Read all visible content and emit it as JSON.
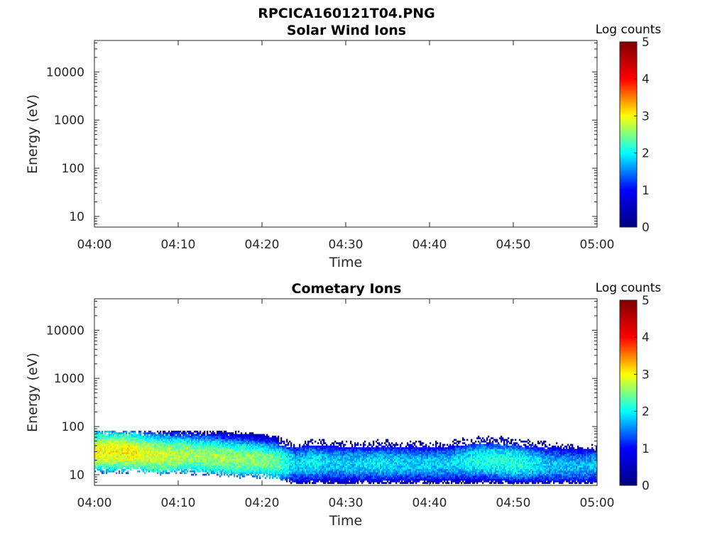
{
  "figure": {
    "title": "RPCICA160121T04.PNG"
  },
  "colormap_stops": [
    "#00007f",
    "#0000ff",
    "#00ffff",
    "#ffff00",
    "#ff0000",
    "#7f0000"
  ],
  "chart_data": [
    {
      "type": "heatmap",
      "title": "Solar Wind Ions",
      "xlabel": "Time",
      "ylabel": "Energy (eV)",
      "x_tick_labels": [
        "04:00",
        "04:10",
        "04:20",
        "04:30",
        "04:40",
        "04:50",
        "05:00"
      ],
      "x_range_minutes": [
        0,
        60
      ],
      "y_scale": "log",
      "y_range": [
        6,
        45000
      ],
      "y_tick_values": [
        10,
        100,
        1000,
        10000
      ],
      "y_tick_labels": [
        "10",
        "100",
        "1000",
        "10000"
      ],
      "colorbar": {
        "label": "Log counts",
        "range": [
          0,
          5
        ],
        "tick_labels": [
          "0",
          "1",
          "2",
          "3",
          "4",
          "5"
        ]
      },
      "data_description_values": [],
      "grid": false
    },
    {
      "type": "heatmap",
      "title": "Cometary Ions",
      "xlabel": "Time",
      "ylabel": "Energy (eV)",
      "x_tick_labels": [
        "04:00",
        "04:10",
        "04:20",
        "04:30",
        "04:40",
        "04:50",
        "05:00"
      ],
      "x_range_minutes": [
        0,
        60
      ],
      "y_scale": "log",
      "y_range": [
        6,
        45000
      ],
      "y_tick_values": [
        10,
        100,
        1000,
        10000
      ],
      "y_tick_labels": [
        "10",
        "100",
        "1000",
        "10000"
      ],
      "colorbar": {
        "label": "Log counts",
        "range": [
          0,
          5
        ],
        "tick_labels": [
          "0",
          "1",
          "2",
          "3",
          "4",
          "5"
        ]
      },
      "grid": false,
      "band_profile": {
        "x_minutes": [
          0,
          4,
          8,
          12,
          16,
          20,
          22,
          24,
          26,
          28,
          30,
          34,
          38,
          42,
          46,
          50,
          54,
          58,
          60
        ],
        "upper_energy_eV": [
          80,
          80,
          80,
          80,
          80,
          80,
          80,
          40,
          60,
          50,
          60,
          70,
          80,
          80,
          80,
          80,
          60,
          40,
          40
        ],
        "peak_energy_eV": [
          30,
          30,
          25,
          25,
          22,
          20,
          18,
          17,
          18,
          18,
          17,
          17,
          17,
          17,
          20,
          18,
          16,
          15,
          16
        ],
        "lower_energy_eV": [
          13,
          13,
          12,
          12,
          11,
          10,
          9,
          7,
          7,
          7,
          7,
          7,
          7,
          7,
          7,
          7,
          7,
          7,
          7
        ],
        "peak_log_counts": [
          3.0,
          3.0,
          2.8,
          2.6,
          2.6,
          2.5,
          2.4,
          1.8,
          2.0,
          1.8,
          1.8,
          1.9,
          1.8,
          1.8,
          2.1,
          2.2,
          1.8,
          1.7,
          1.8
        ]
      }
    }
  ]
}
